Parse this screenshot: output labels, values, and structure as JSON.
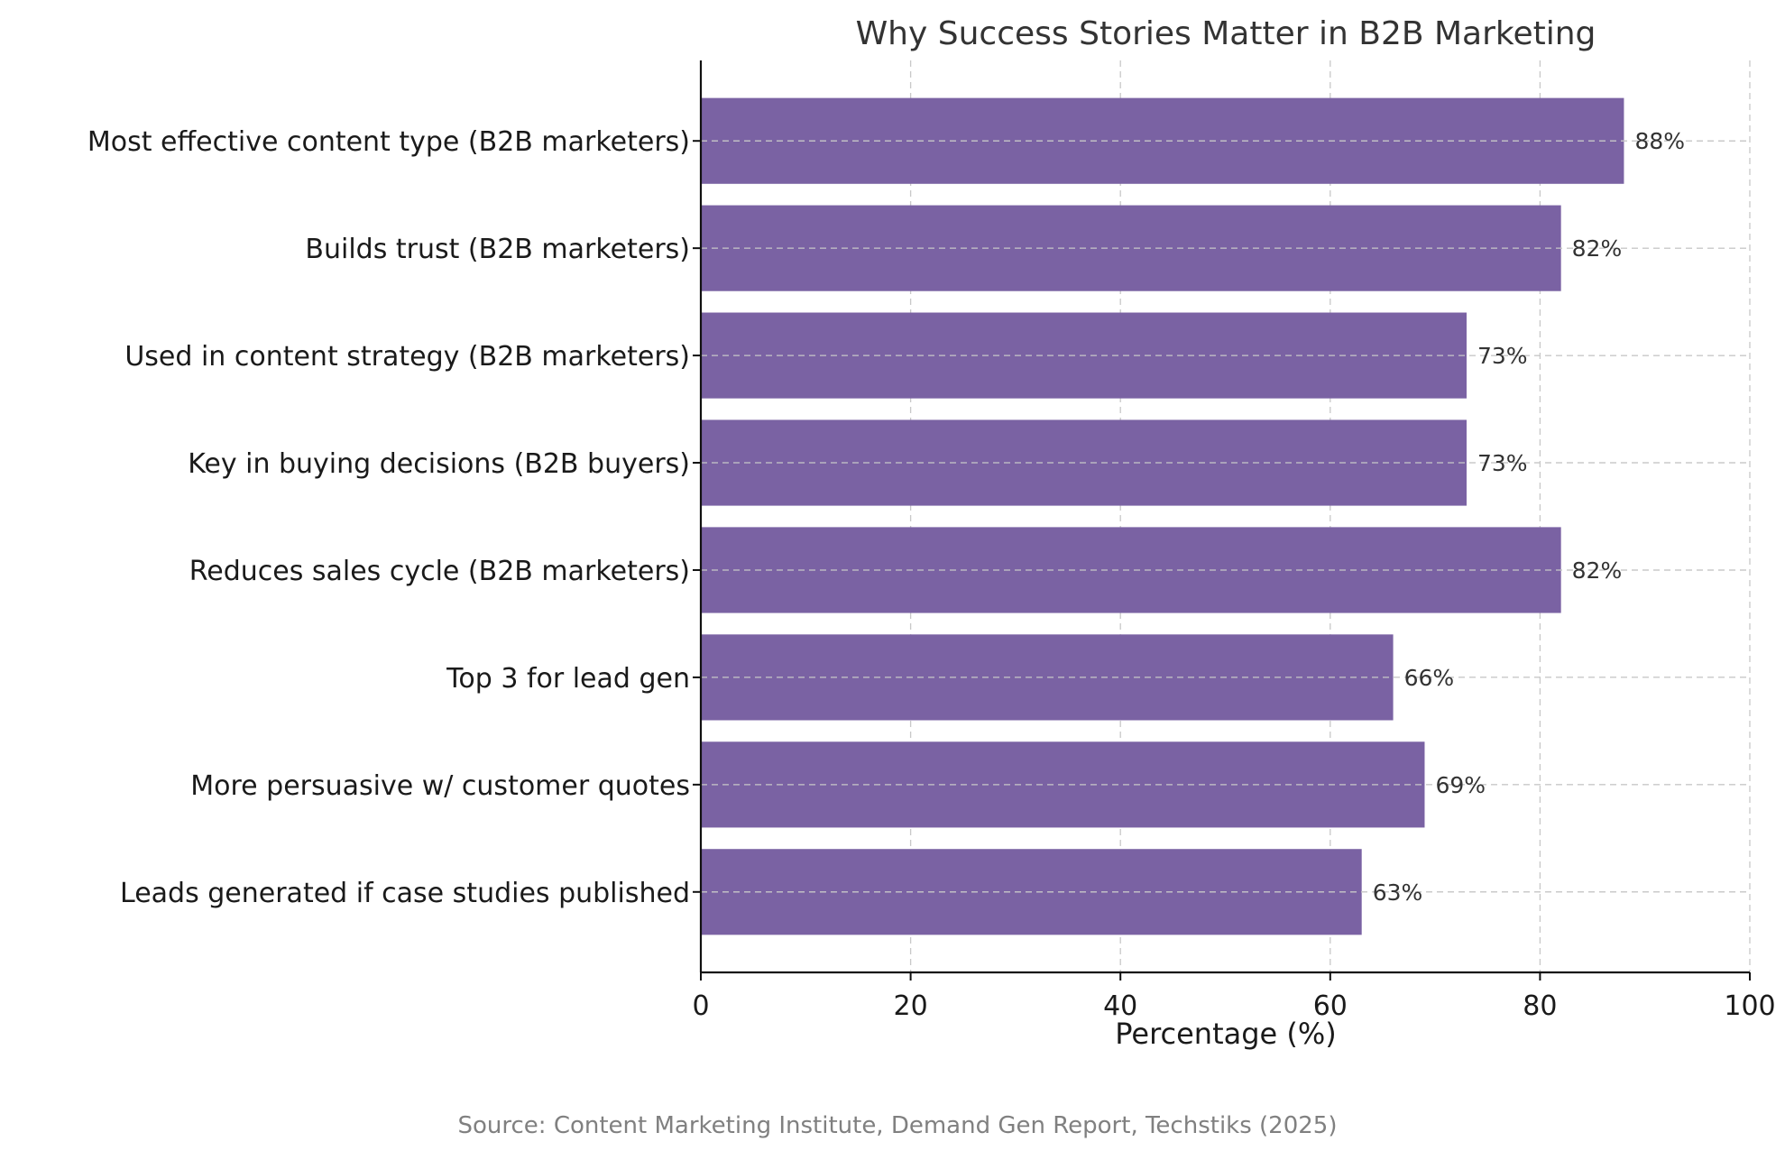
{
  "chart_data": {
    "type": "bar",
    "orientation": "horizontal",
    "title": "Why Success Stories Matter in B2B Marketing",
    "xlabel": "Percentage (%)",
    "ylabel": "",
    "categories": [
      "Most effective content type (B2B marketers)",
      "Builds trust (B2B marketers)",
      "Used in content strategy (B2B marketers)",
      "Key in buying decisions (B2B buyers)",
      "Reduces sales cycle (B2B marketers)",
      "Top 3 for lead gen",
      "More persuasive w/ customer quotes",
      "Leads generated if case studies published"
    ],
    "values": [
      88,
      82,
      73,
      73,
      82,
      66,
      69,
      63
    ],
    "value_labels": [
      "88%",
      "82%",
      "73%",
      "73%",
      "82%",
      "66%",
      "69%",
      "63%"
    ],
    "xlim": [
      0,
      100
    ],
    "xticks": [
      0,
      20,
      40,
      60,
      80,
      100
    ],
    "xtick_labels": [
      "0",
      "20",
      "40",
      "60",
      "80",
      "100"
    ],
    "grid": true,
    "bar_color": "#7a62a3",
    "source": "Source: Content Marketing Institute, Demand Gen Report, Techstiks (2025)"
  }
}
